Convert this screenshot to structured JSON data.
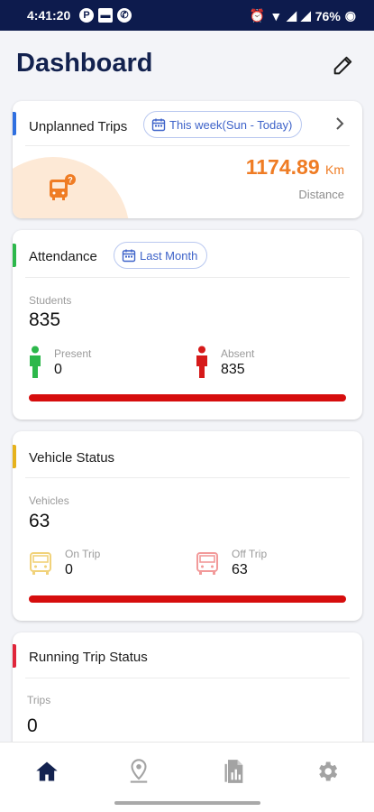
{
  "status_bar": {
    "time": "4:41:20",
    "battery": "76%"
  },
  "header": {
    "title": "Dashboard"
  },
  "unplanned_trips": {
    "title": "Unplanned Trips",
    "filter": "This week(Sun - Today)",
    "distance_value": "1174.89",
    "distance_unit": "Km",
    "distance_label": "Distance",
    "accent": "#2f6fe0"
  },
  "attendance": {
    "title": "Attendance",
    "filter": "Last Month",
    "students_label": "Students",
    "students_value": "835",
    "present_label": "Present",
    "present_value": "0",
    "absent_label": "Absent",
    "absent_value": "835",
    "present_fraction": 0,
    "accent": "#2db84b"
  },
  "vehicle_status": {
    "title": "Vehicle Status",
    "vehicles_label": "Vehicles",
    "vehicles_value": "63",
    "on_trip_label": "On Trip",
    "on_trip_value": "0",
    "off_trip_label": "Off Trip",
    "off_trip_value": "63",
    "on_trip_fraction": 0,
    "accent": "#e6b21c"
  },
  "running_trip_status": {
    "title": "Running Trip Status",
    "trips_label": "Trips",
    "trips_value": "0",
    "accent": "#e0253a"
  },
  "nav": {
    "items": [
      "home-icon",
      "location-icon",
      "reports-icon",
      "settings-icon"
    ],
    "active_color": "#13224f",
    "inactive_color": "#a3a3a3"
  }
}
